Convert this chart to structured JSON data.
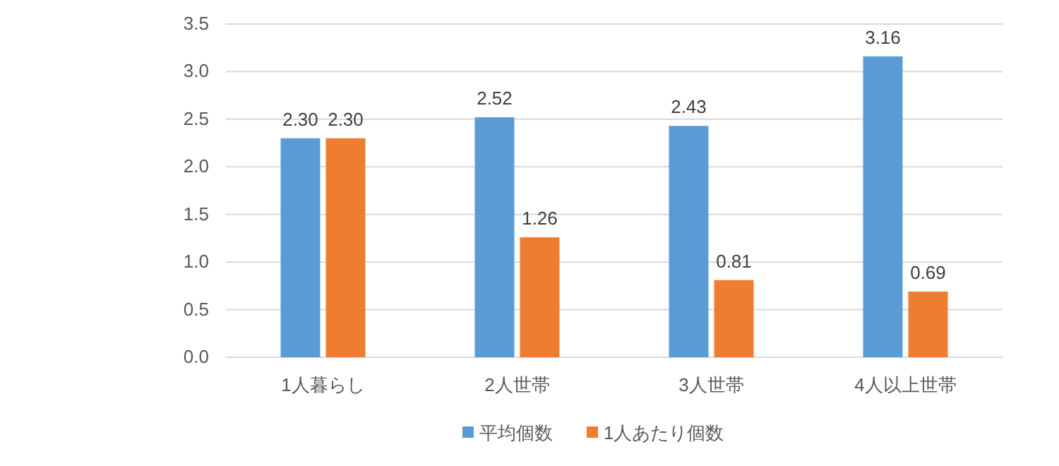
{
  "chart_data": {
    "type": "bar",
    "categories": [
      "1人暮らし",
      "2人世帯",
      "3人世帯",
      "4人以上世帯"
    ],
    "series": [
      {
        "name": "平均個数",
        "color": "#5b9bd5",
        "values": [
          2.3,
          2.52,
          2.43,
          3.16
        ],
        "value_labels": [
          "2.30",
          "2.52",
          "2.43",
          "3.16"
        ]
      },
      {
        "name": "1人あたり個数",
        "color": "#ed7d31",
        "values": [
          2.3,
          1.26,
          0.81,
          0.69
        ],
        "value_labels": [
          "2.30",
          "1.26",
          "0.81",
          "0.69"
        ]
      }
    ],
    "ylim": [
      0,
      3.5
    ],
    "yticks": [
      {
        "value": 0,
        "label": "0.0"
      },
      {
        "value": 0.5,
        "label": "0.5"
      },
      {
        "value": 1,
        "label": "1.0"
      },
      {
        "value": 1.5,
        "label": "1.5"
      },
      {
        "value": 2,
        "label": "2.0"
      },
      {
        "value": 2.5,
        "label": "2.5"
      },
      {
        "value": 3,
        "label": "3.0"
      },
      {
        "value": 3.5,
        "label": "3.5"
      }
    ],
    "grid": "y",
    "legend": "bottom"
  }
}
